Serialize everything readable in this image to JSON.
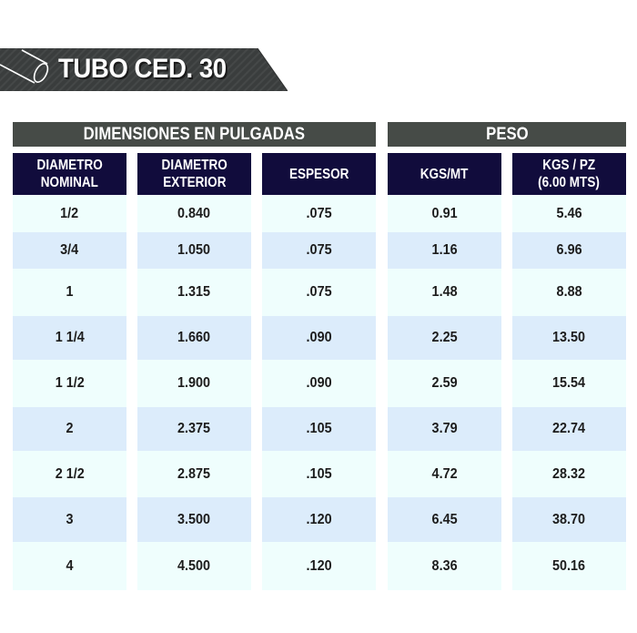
{
  "title": "TUBO CED. 30",
  "groups": {
    "dimensions": "DIMENSIONES EN PULGADAS",
    "weight": "PESO"
  },
  "columns": [
    {
      "line1": "DIAMETRO",
      "line2": "NOMINAL"
    },
    {
      "line1": "DIAMETRO",
      "line2": "EXTERIOR"
    },
    {
      "line1": "ESPESOR",
      "line2": ""
    },
    {
      "line1": "KGS/MT",
      "line2": ""
    },
    {
      "line1": "KGS / PZ",
      "line2": "(6.00 MTS)"
    }
  ],
  "rows": [
    [
      "1/2",
      "0.840",
      ".075",
      "0.91",
      "5.46"
    ],
    [
      "3/4",
      "1.050",
      ".075",
      "1.16",
      "6.96"
    ],
    [
      "1",
      "1.315",
      ".075",
      "1.48",
      "8.88"
    ],
    [
      "1 1/4",
      "1.660",
      ".090",
      "2.25",
      "13.50"
    ],
    [
      "1 1/2",
      "1.900",
      ".090",
      "2.59",
      "15.54"
    ],
    [
      "2",
      "2.375",
      ".105",
      "3.79",
      "22.74"
    ],
    [
      "2 1/2",
      "2.875",
      ".105",
      "4.72",
      "28.32"
    ],
    [
      "3",
      "3.500",
      ".120",
      "6.45",
      "38.70"
    ],
    [
      "4",
      "4.500",
      ".120",
      "8.36",
      "50.16"
    ]
  ],
  "colors": {
    "banner": "#3a3d3d",
    "group_header": "#464b47",
    "column_header": "#110c3c",
    "row_light": "#effefd",
    "row_blue": "#dcecfb"
  }
}
